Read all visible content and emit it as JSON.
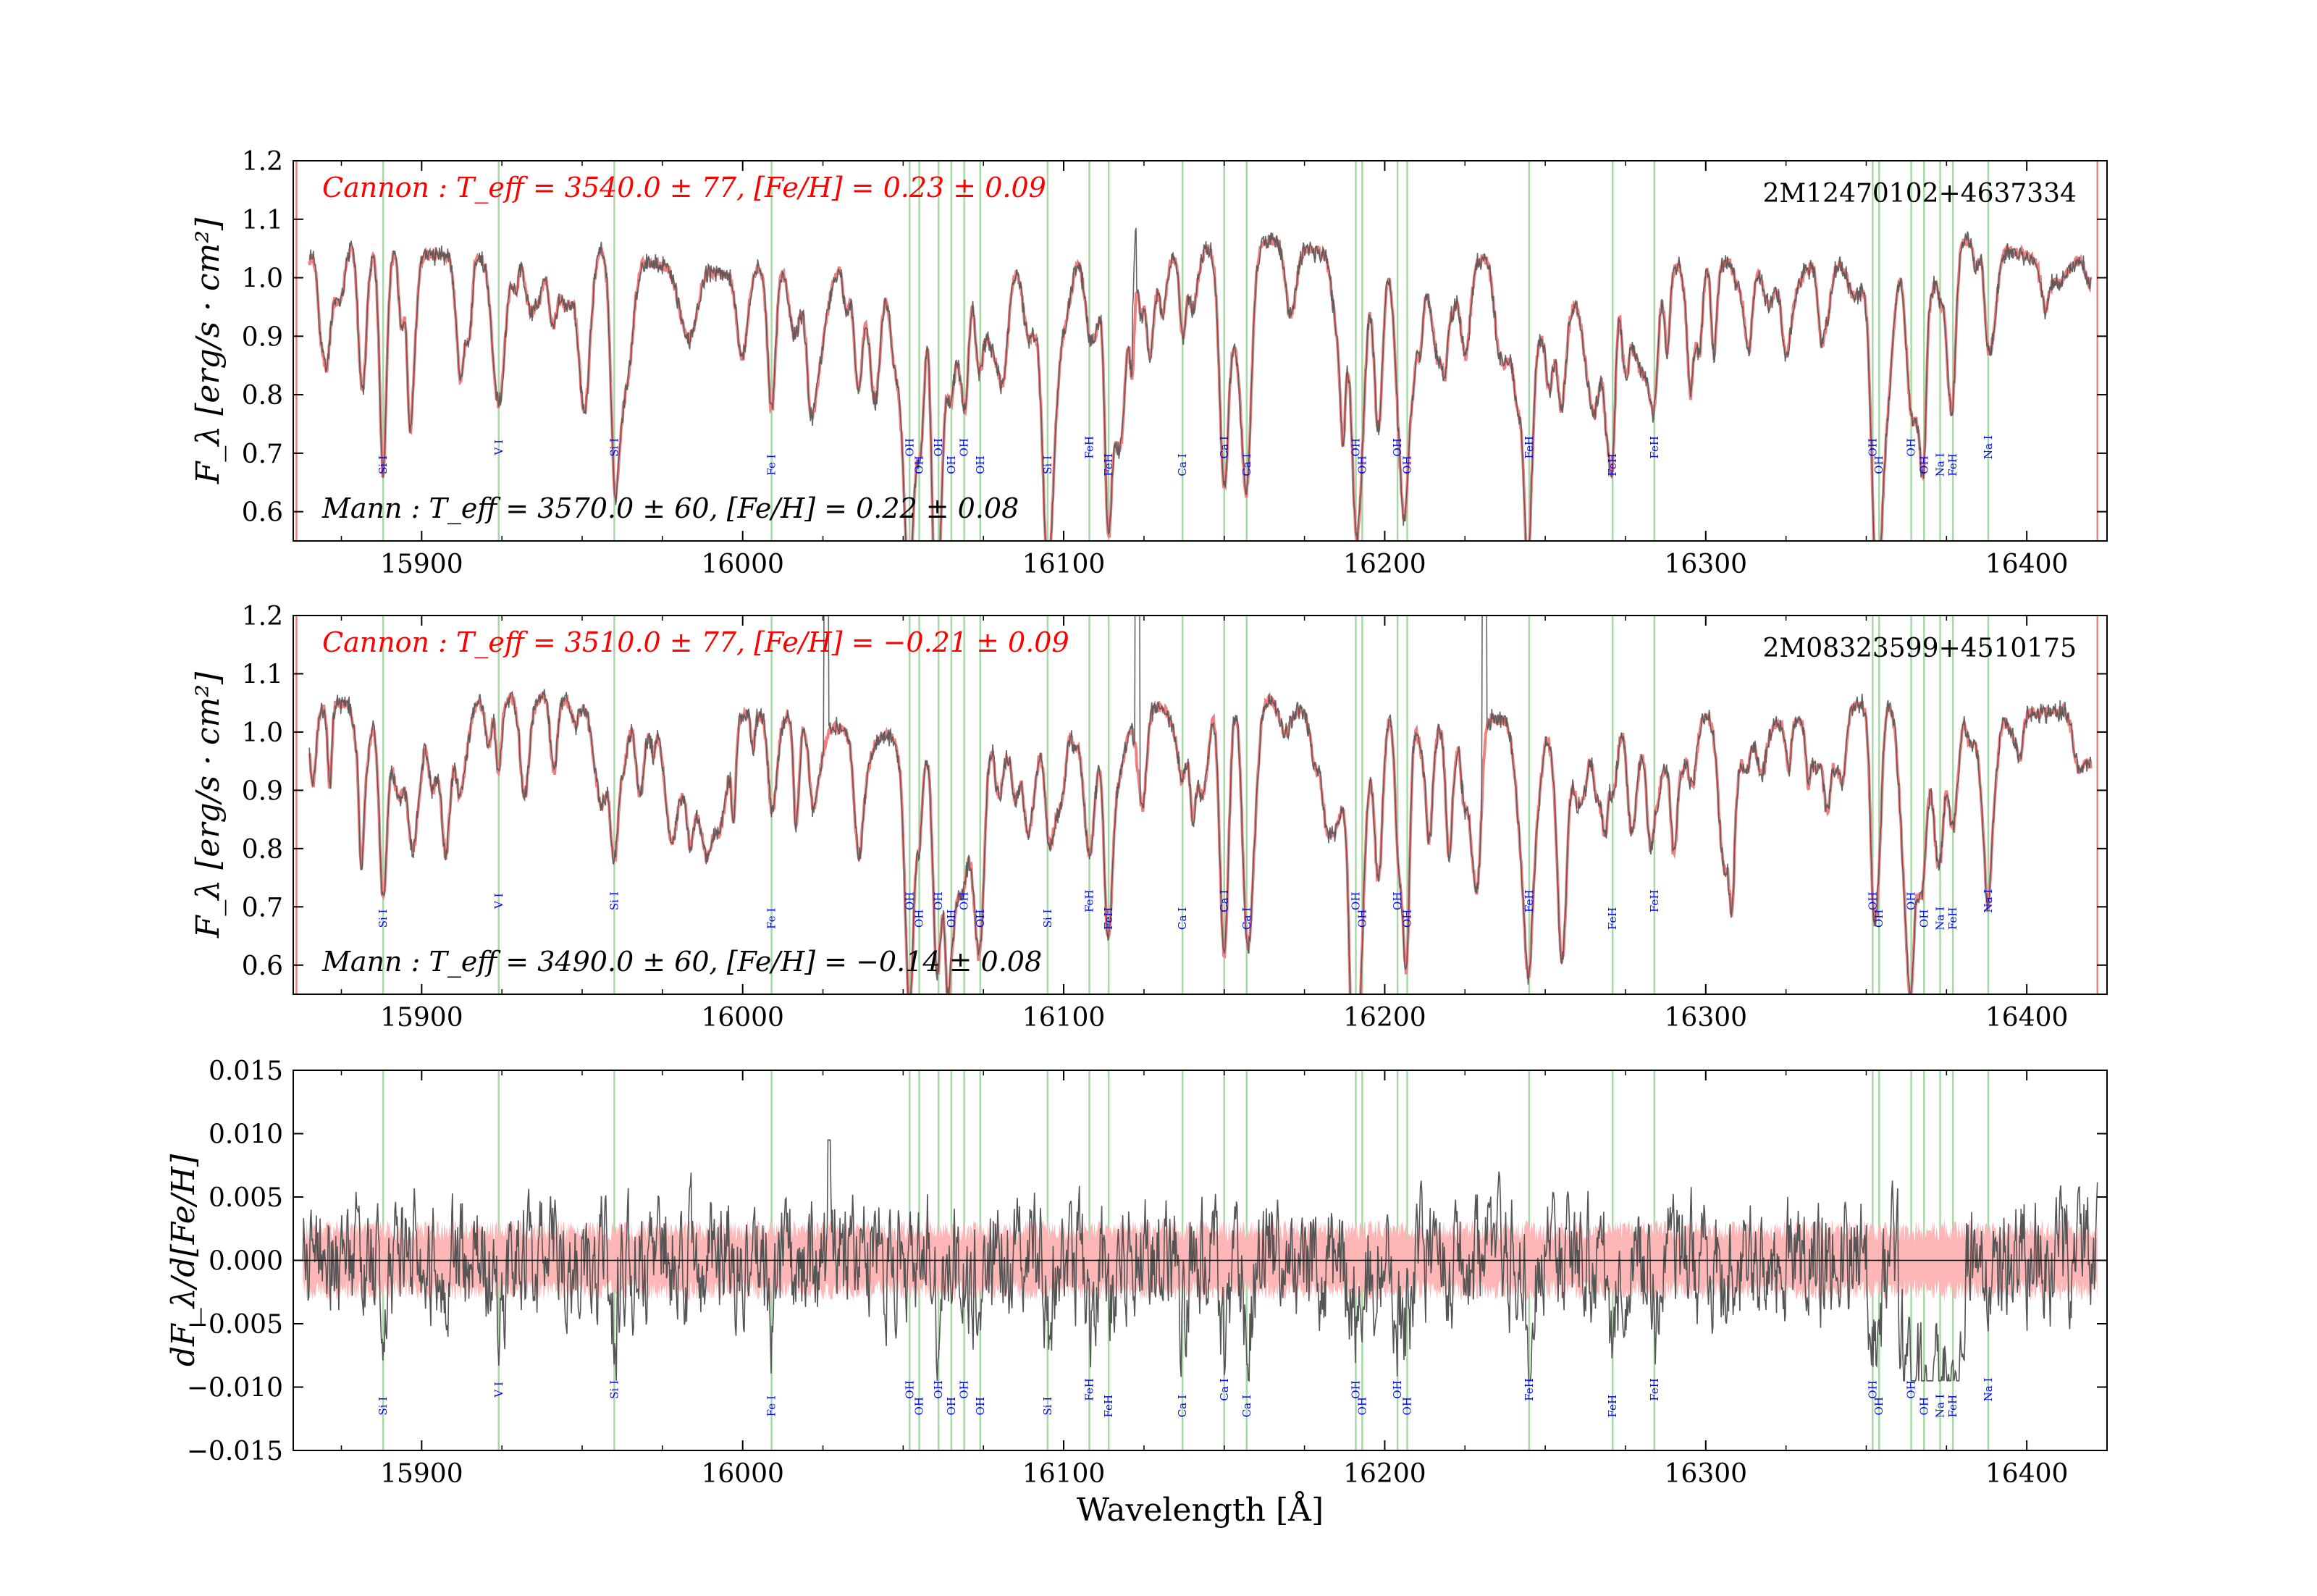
{
  "chart_data": [
    {
      "type": "line",
      "panel": "top",
      "ylabel": "F_λ [erg/s · cm²]",
      "xlim": [
        15860,
        16425
      ],
      "ylim": [
        0.55,
        1.2
      ],
      "yticks": [
        "0.6",
        "0.7",
        "0.8",
        "0.9",
        "1.0",
        "1.1",
        "1.2"
      ],
      "xticks": [
        "15900",
        "16000",
        "16100",
        "16200",
        "16300",
        "16400"
      ],
      "star_id": "2M12470102+4637334",
      "cannon_text": "Cannon : T_eff = 3540.0 ± 77, [Fe/H] = 0.23 ± 0.09",
      "mann_text": "Mann : T_eff = 3570.0 ± 60, [Fe/H] = 0.22 ± 0.08",
      "series": [
        {
          "role": "data",
          "color": "#555555"
        },
        {
          "role": "model",
          "color": "#f08080"
        }
      ]
    },
    {
      "type": "line",
      "panel": "middle",
      "ylabel": "F_λ [erg/s · cm²]",
      "xlim": [
        15860,
        16425
      ],
      "ylim": [
        0.55,
        1.2
      ],
      "yticks": [
        "0.6",
        "0.7",
        "0.8",
        "0.9",
        "1.0",
        "1.1",
        "1.2"
      ],
      "xticks": [
        "15900",
        "16000",
        "16100",
        "16200",
        "16300",
        "16400"
      ],
      "star_id": "2M08323599+4510175",
      "cannon_text": "Cannon : T_eff = 3510.0 ± 77, [Fe/H] = −0.21 ± 0.09",
      "mann_text": "Mann : T_eff = 3490.0 ± 60, [Fe/H] = −0.14 ± 0.08",
      "series": [
        {
          "role": "data",
          "color": "#555555"
        },
        {
          "role": "model",
          "color": "#f08080"
        }
      ]
    },
    {
      "type": "line",
      "panel": "bottom",
      "ylabel": "dF_λ/d[Fe/H]",
      "xlabel": "Wavelength [Å]",
      "xlim": [
        15860,
        16425
      ],
      "ylim": [
        -0.015,
        0.015
      ],
      "yticks": [
        "−0.015",
        "−0.010",
        "−0.005",
        "0.000",
        "0.005",
        "0.010",
        "0.015"
      ],
      "xticks": [
        "15900",
        "16000",
        "16100",
        "16200",
        "16300",
        "16400"
      ],
      "series": [
        {
          "role": "derivative",
          "color": "#555555"
        },
        {
          "role": "uncertainty-band",
          "color": "#ffb6b6"
        }
      ]
    }
  ],
  "spectral_lines": [
    {
      "label": "Si I",
      "x": 15888,
      "tier": "low"
    },
    {
      "label": "V I",
      "x": 15924,
      "tier": "high"
    },
    {
      "label": "Si I",
      "x": 15960,
      "tier": "high"
    },
    {
      "label": "Fe I",
      "x": 16009,
      "tier": "low"
    },
    {
      "label": "OH",
      "x": 16052,
      "tier": "high"
    },
    {
      "label": "OH",
      "x": 16055,
      "tier": "low"
    },
    {
      "label": "OH",
      "x": 16061,
      "tier": "high"
    },
    {
      "label": "OH",
      "x": 16065,
      "tier": "low"
    },
    {
      "label": "OH",
      "x": 16069,
      "tier": "high"
    },
    {
      "label": "OH",
      "x": 16074,
      "tier": "low"
    },
    {
      "label": "Si I",
      "x": 16095,
      "tier": "low"
    },
    {
      "label": "FeH",
      "x": 16108,
      "tier": "high"
    },
    {
      "label": "FeH",
      "x": 16114,
      "tier": "low"
    },
    {
      "label": "Ca I",
      "x": 16137,
      "tier": "low"
    },
    {
      "label": "Ca I",
      "x": 16150,
      "tier": "high"
    },
    {
      "label": "Ca I",
      "x": 16157,
      "tier": "low"
    },
    {
      "label": "OH",
      "x": 16191,
      "tier": "high"
    },
    {
      "label": "OH",
      "x": 16193,
      "tier": "low"
    },
    {
      "label": "OH",
      "x": 16204,
      "tier": "high"
    },
    {
      "label": "OH",
      "x": 16207,
      "tier": "low"
    },
    {
      "label": "FeH",
      "x": 16245,
      "tier": "high"
    },
    {
      "label": "FeH",
      "x": 16271,
      "tier": "low"
    },
    {
      "label": "FeH",
      "x": 16284,
      "tier": "high"
    },
    {
      "label": "OH",
      "x": 16352,
      "tier": "high"
    },
    {
      "label": "OH",
      "x": 16354,
      "tier": "low"
    },
    {
      "label": "OH",
      "x": 16364,
      "tier": "high"
    },
    {
      "label": "OH",
      "x": 16368,
      "tier": "low"
    },
    {
      "label": "Na I",
      "x": 16373,
      "tier": "low"
    },
    {
      "label": "FeH",
      "x": 16377,
      "tier": "low"
    },
    {
      "label": "Na I",
      "x": 16388,
      "tier": "high"
    }
  ]
}
